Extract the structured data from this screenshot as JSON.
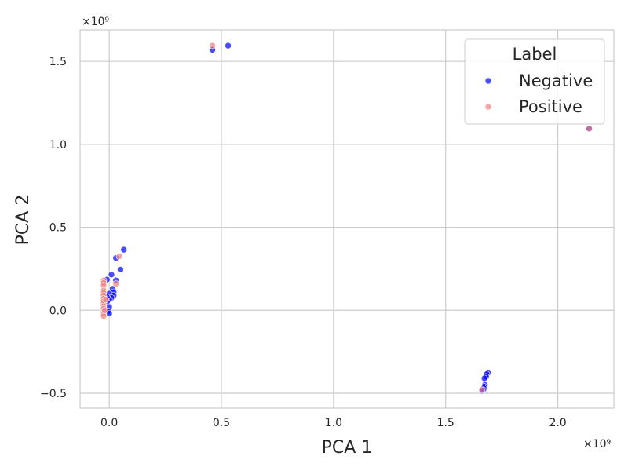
{
  "chart_data": {
    "type": "scatter",
    "title": "",
    "xlabel": "PCA 1",
    "ylabel": "PCA 2",
    "x_multiplier": "×10⁹",
    "y_multiplier": "×10⁹",
    "xlim": [
      -0.13,
      2.25
    ],
    "ylim": [
      -0.59,
      1.69
    ],
    "x_ticks": [
      0.0,
      0.5,
      1.0,
      1.5,
      2.0
    ],
    "x_tick_labels": [
      "0.0",
      "0.5",
      "1.0",
      "1.5",
      "2.0"
    ],
    "y_ticks": [
      -0.5,
      0.0,
      0.5,
      1.0,
      1.5
    ],
    "y_tick_labels": [
      "−0.5",
      "0.0",
      "0.5",
      "1.0",
      "1.5"
    ],
    "grid": true,
    "legend": {
      "title": "Label",
      "placement": "top-right"
    },
    "series": [
      {
        "name": "Negative",
        "color": "#0000ff",
        "points": [
          [
            0.46,
            1.57
          ],
          [
            0.53,
            1.595
          ],
          [
            2.14,
            1.095
          ],
          [
            0.065,
            0.365
          ],
          [
            0.03,
            0.315
          ],
          [
            0.05,
            0.245
          ],
          [
            0.01,
            0.215
          ],
          [
            -0.01,
            0.185
          ],
          [
            0.03,
            0.18
          ],
          [
            0.015,
            0.13
          ],
          [
            0.02,
            0.11
          ],
          [
            0.0,
            0.1
          ],
          [
            0.02,
            0.09
          ],
          [
            0.01,
            0.075
          ],
          [
            0.0,
            0.065
          ],
          [
            -0.01,
            0.05
          ],
          [
            0.0,
            0.02
          ],
          [
            -0.005,
            -0.005
          ],
          [
            0.0,
            -0.02
          ],
          [
            -0.01,
            0.08
          ],
          [
            1.69,
            -0.375
          ],
          [
            1.683,
            -0.385
          ],
          [
            1.68,
            -0.4
          ],
          [
            1.673,
            -0.41
          ],
          [
            1.675,
            -0.45
          ],
          [
            1.672,
            -0.46
          ],
          [
            1.67,
            -0.47
          ],
          [
            1.668,
            -0.48
          ],
          [
            1.662,
            -0.485
          ]
        ]
      },
      {
        "name": "Positive",
        "color": "#f08080",
        "points": [
          [
            0.46,
            1.595
          ],
          [
            2.14,
            1.095
          ],
          [
            0.045,
            0.325
          ],
          [
            0.03,
            0.16
          ],
          [
            -0.025,
            0.18
          ],
          [
            -0.025,
            0.165
          ],
          [
            -0.025,
            0.15
          ],
          [
            -0.025,
            0.12
          ],
          [
            -0.025,
            0.105
          ],
          [
            -0.025,
            0.09
          ],
          [
            -0.025,
            0.07
          ],
          [
            -0.025,
            0.055
          ],
          [
            -0.025,
            0.04
          ],
          [
            -0.025,
            0.025
          ],
          [
            -0.025,
            0.01
          ],
          [
            -0.025,
            -0.005
          ],
          [
            -0.025,
            -0.02
          ],
          [
            -0.025,
            -0.035
          ],
          [
            -0.02,
            0.0
          ],
          [
            -0.015,
            0.065
          ],
          [
            1.662,
            -0.48
          ]
        ]
      }
    ]
  }
}
